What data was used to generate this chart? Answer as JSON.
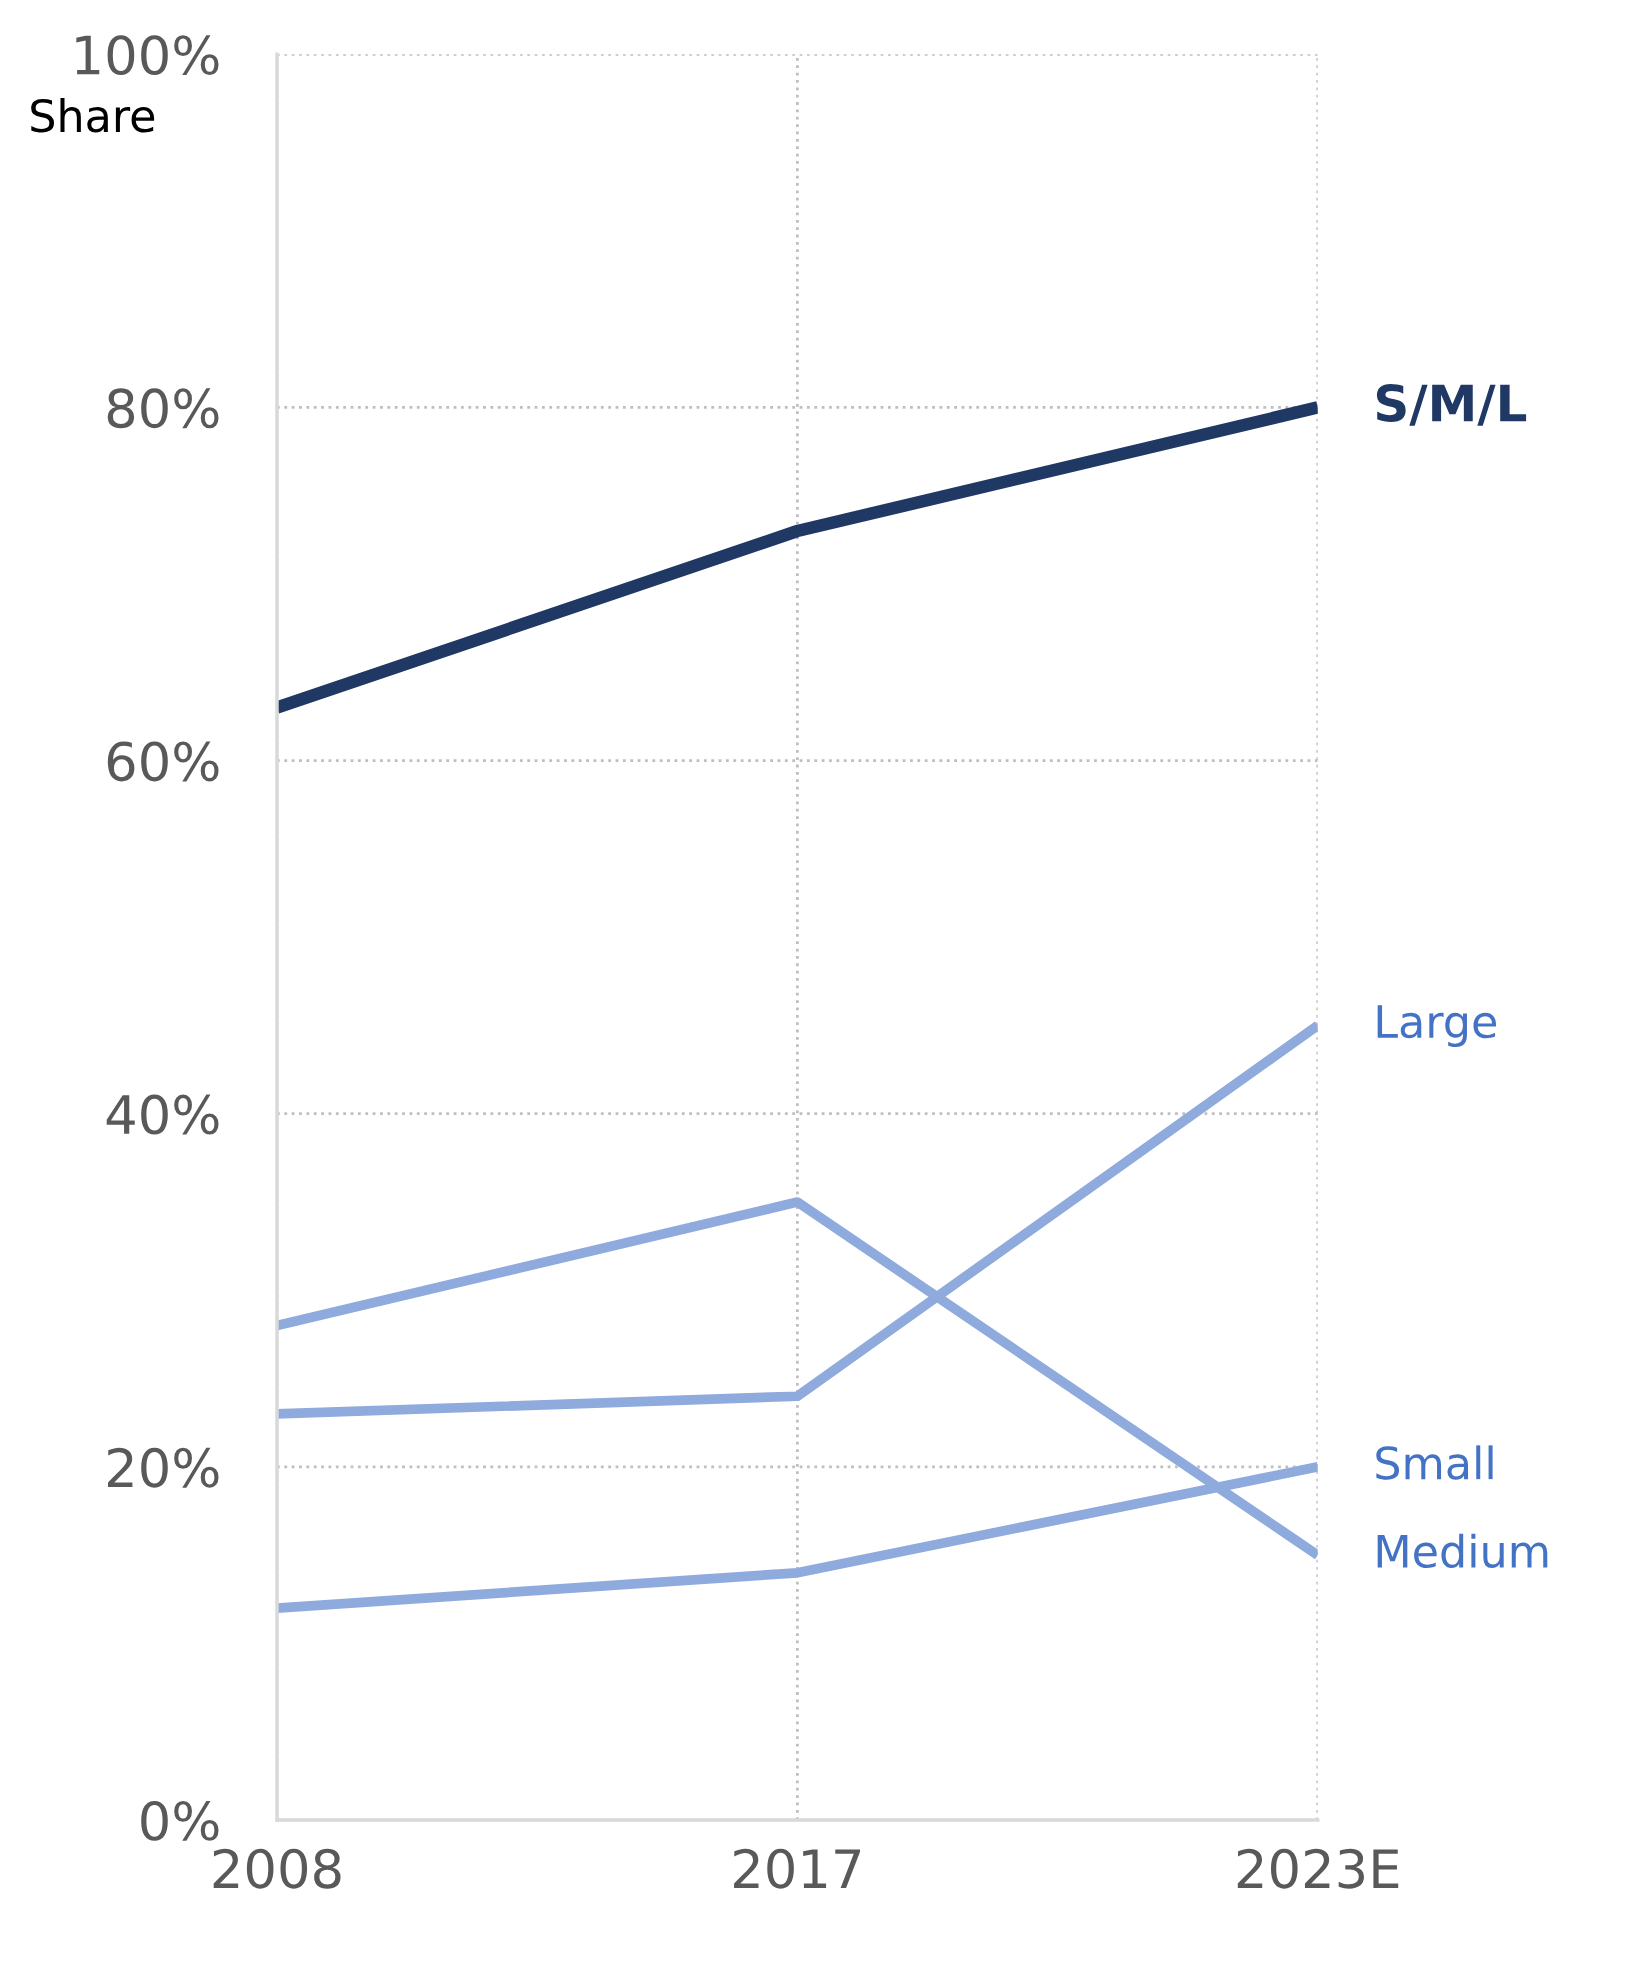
{
  "chart_data": {
    "type": "line",
    "ylabel": "Share",
    "categories": [
      "2008",
      "2017",
      "2023E"
    ],
    "series": [
      {
        "name": "S/M/L",
        "color": "#1f3864",
        "values": [
          63,
          73,
          80
        ]
      },
      {
        "name": "Large",
        "color": "#8faadc",
        "values": [
          23,
          24,
          45
        ]
      },
      {
        "name": "Medium",
        "color": "#8faadc",
        "values": [
          28,
          35,
          15
        ]
      },
      {
        "name": "Small",
        "color": "#8faadc",
        "values": [
          12,
          14,
          20
        ]
      }
    ],
    "ylim": [
      0,
      100
    ],
    "yticks": [
      {
        "value": 0,
        "label": "0%"
      },
      {
        "value": 20,
        "label": "20%"
      },
      {
        "value": 40,
        "label": "40%"
      },
      {
        "value": 60,
        "label": "60%"
      },
      {
        "value": 80,
        "label": "80%"
      },
      {
        "value": 100,
        "label": "100%"
      }
    ],
    "grid": true,
    "legend": false,
    "marker": "none",
    "line_style": "solid"
  }
}
